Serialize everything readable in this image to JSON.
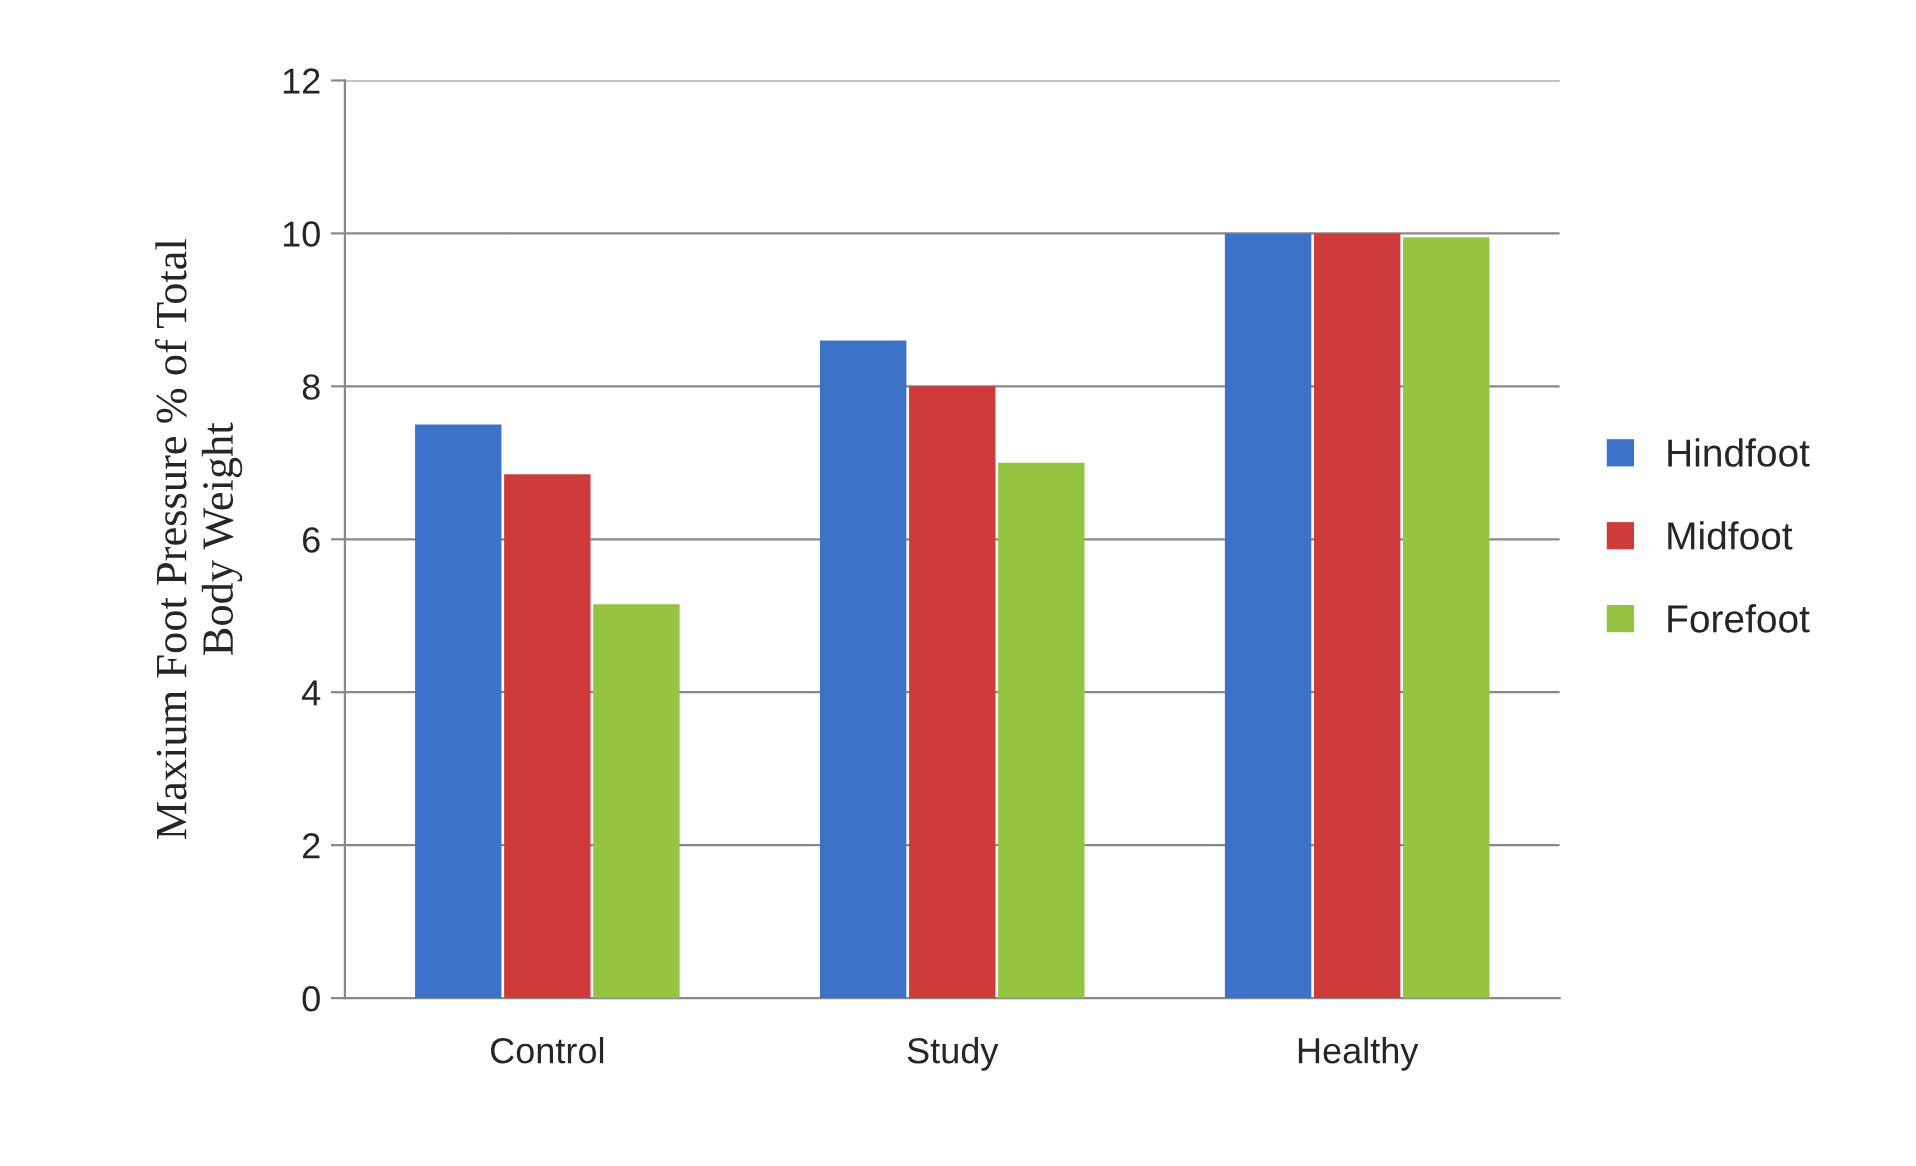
{
  "chart_data": {
    "type": "bar",
    "ylabel": "Maxium Foot Pressure % of Total\nBody Weight",
    "categories": [
      "Control",
      "Study",
      "Healthy"
    ],
    "series": [
      {
        "name": "Hindfoot",
        "color": "#3c72c8",
        "values": [
          7.5,
          8.6,
          10.0
        ]
      },
      {
        "name": "Midfoot",
        "color": "#cf3b3b",
        "values": [
          6.85,
          8.0,
          10.0
        ]
      },
      {
        "name": "Forefoot",
        "color": "#95c441",
        "values": [
          5.15,
          7.0,
          9.95
        ]
      }
    ],
    "ylim": [
      0,
      12
    ],
    "yticks": [
      0,
      2,
      4,
      6,
      8,
      10,
      12
    ],
    "grid": "y",
    "legend": "right"
  }
}
